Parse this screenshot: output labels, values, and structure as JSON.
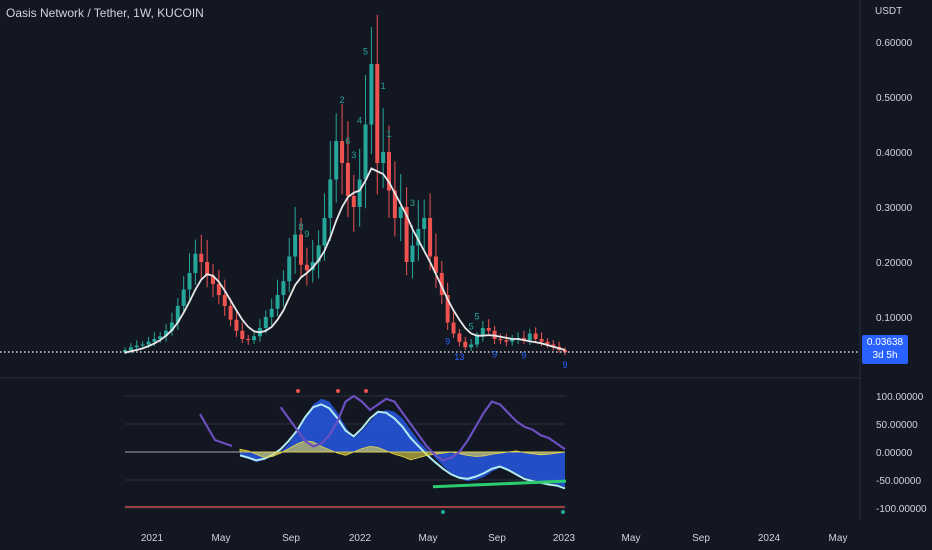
{
  "header": {
    "title": "Oasis Network / Tether, 1W, KUCOIN",
    "unit": "USDT"
  },
  "price_label": {
    "price": "0.03638",
    "countdown": "3d 5h"
  },
  "colors": {
    "bg": "#131722",
    "up": "#26a69a",
    "down": "#ef5350",
    "ma": "#e8e8e8",
    "wave_fill": "#2962ff",
    "wave_line": "#b2ebf2",
    "yellow": "#e8d84a",
    "purple": "#6a4fbf",
    "divergence": "#2ecc71",
    "tag": "#2962ff"
  },
  "chart_data": [
    {
      "type": "candlestick",
      "title": "Oasis Network / Tether, 1W, KUCOIN",
      "ylabel": "USDT",
      "ylim": [
        0.0,
        0.64
      ],
      "y_ticks": [
        "0.60000",
        "0.50000",
        "0.40000",
        "0.30000",
        "0.20000",
        "0.10000"
      ],
      "x_ticks": [
        "2021",
        "May",
        "Sep",
        "2022",
        "May",
        "Sep",
        "2023",
        "May",
        "Sep",
        "2024",
        "May"
      ],
      "last_price": 0.03638,
      "series": [
        {
          "name": "close",
          "values": [
            0.04,
            0.045,
            0.048,
            0.05,
            0.055,
            0.06,
            0.065,
            0.075,
            0.09,
            0.12,
            0.15,
            0.18,
            0.215,
            0.2,
            0.175,
            0.16,
            0.14,
            0.12,
            0.095,
            0.075,
            0.06,
            0.058,
            0.065,
            0.08,
            0.1,
            0.115,
            0.14,
            0.165,
            0.21,
            0.25,
            0.195,
            0.185,
            0.2,
            0.23,
            0.28,
            0.35,
            0.42,
            0.38,
            0.32,
            0.3,
            0.35,
            0.45,
            0.56,
            0.38,
            0.4,
            0.33,
            0.28,
            0.3,
            0.2,
            0.23,
            0.26,
            0.28,
            0.21,
            0.18,
            0.14,
            0.09,
            0.07,
            0.055,
            0.045,
            0.05,
            0.065,
            0.08,
            0.075,
            0.06,
            0.058,
            0.055,
            0.06,
            0.062,
            0.058,
            0.07,
            0.06,
            0.055,
            0.05,
            0.046,
            0.04,
            0.036
          ]
        },
        {
          "name": "moving average",
          "values": [
            0.035,
            0.038,
            0.04,
            0.043,
            0.047,
            0.052,
            0.058,
            0.066,
            0.076,
            0.09,
            0.108,
            0.128,
            0.15,
            0.168,
            0.178,
            0.175,
            0.164,
            0.148,
            0.13,
            0.112,
            0.095,
            0.082,
            0.074,
            0.072,
            0.075,
            0.082,
            0.095,
            0.112,
            0.135,
            0.158,
            0.172,
            0.18,
            0.19,
            0.203,
            0.22,
            0.245,
            0.275,
            0.3,
            0.318,
            0.326,
            0.33,
            0.348,
            0.37,
            0.365,
            0.36,
            0.345,
            0.325,
            0.305,
            0.285,
            0.26,
            0.24,
            0.22,
            0.2,
            0.178,
            0.155,
            0.132,
            0.112,
            0.095,
            0.08,
            0.07,
            0.066,
            0.066,
            0.067,
            0.066,
            0.064,
            0.062,
            0.06,
            0.06,
            0.058,
            0.056,
            0.054,
            0.052,
            0.049,
            0.046,
            0.043,
            0.04
          ]
        }
      ],
      "annotations": [
        "4",
        "3",
        "4",
        "5",
        "8",
        "9",
        "6",
        "1",
        "9",
        "9",
        "13",
        "9",
        "3",
        "2",
        "5",
        "5",
        "1",
        "9"
      ]
    },
    {
      "type": "area",
      "title": "",
      "ylim": [
        -100,
        100
      ],
      "y_ticks": [
        "100.00000",
        "50.00000",
        "0.00000",
        "-50.00000",
        "-100.00000"
      ],
      "series": [
        {
          "name": "wave",
          "values": [
            -5,
            -12,
            -18,
            -14,
            -8,
            0,
            15,
            35,
            60,
            85,
            95,
            90,
            70,
            45,
            25,
            38,
            55,
            70,
            75,
            72,
            60,
            40,
            20,
            5,
            -10,
            -25,
            -38,
            -48,
            -52,
            -50,
            -45,
            -35,
            -28,
            -30,
            -38,
            -45,
            -50,
            -52,
            -55,
            -58,
            -62
          ]
        },
        {
          "name": "momentum",
          "values": [
            -6,
            -10,
            -15,
            -12,
            -5,
            5,
            20,
            38,
            62,
            80,
            85,
            78,
            60,
            38,
            28,
            42,
            60,
            72,
            70,
            60,
            45,
            25,
            10,
            -5,
            -18,
            -30,
            -40,
            -46,
            -48,
            -44,
            -38,
            -30,
            -26,
            -32,
            -40,
            -48,
            -52,
            -55,
            -58,
            -60,
            -65
          ]
        },
        {
          "name": "oscillator",
          "values": [
            5,
            2,
            -4,
            -10,
            -8,
            -2,
            6,
            14,
            20,
            18,
            10,
            4,
            -2,
            -6,
            0,
            6,
            10,
            8,
            2,
            -4,
            -8,
            -14,
            -10,
            -6,
            -4,
            -2,
            0,
            -3,
            -6,
            -8,
            -7,
            -4,
            -2,
            0,
            2,
            -1,
            -3,
            -5,
            -4,
            -2,
            0
          ]
        },
        {
          "name": "trend",
          "values": [
            null,
            null,
            null,
            null,
            null,
            80,
            60,
            40,
            20,
            10,
            15,
            30,
            55,
            90,
            100,
            90,
            75,
            85,
            95,
            90,
            70,
            50,
            30,
            10,
            -5,
            -15,
            -10,
            0,
            20,
            45,
            70,
            90,
            85,
            70,
            55,
            45,
            40,
            30,
            25,
            15,
            5
          ]
        }
      ]
    }
  ]
}
